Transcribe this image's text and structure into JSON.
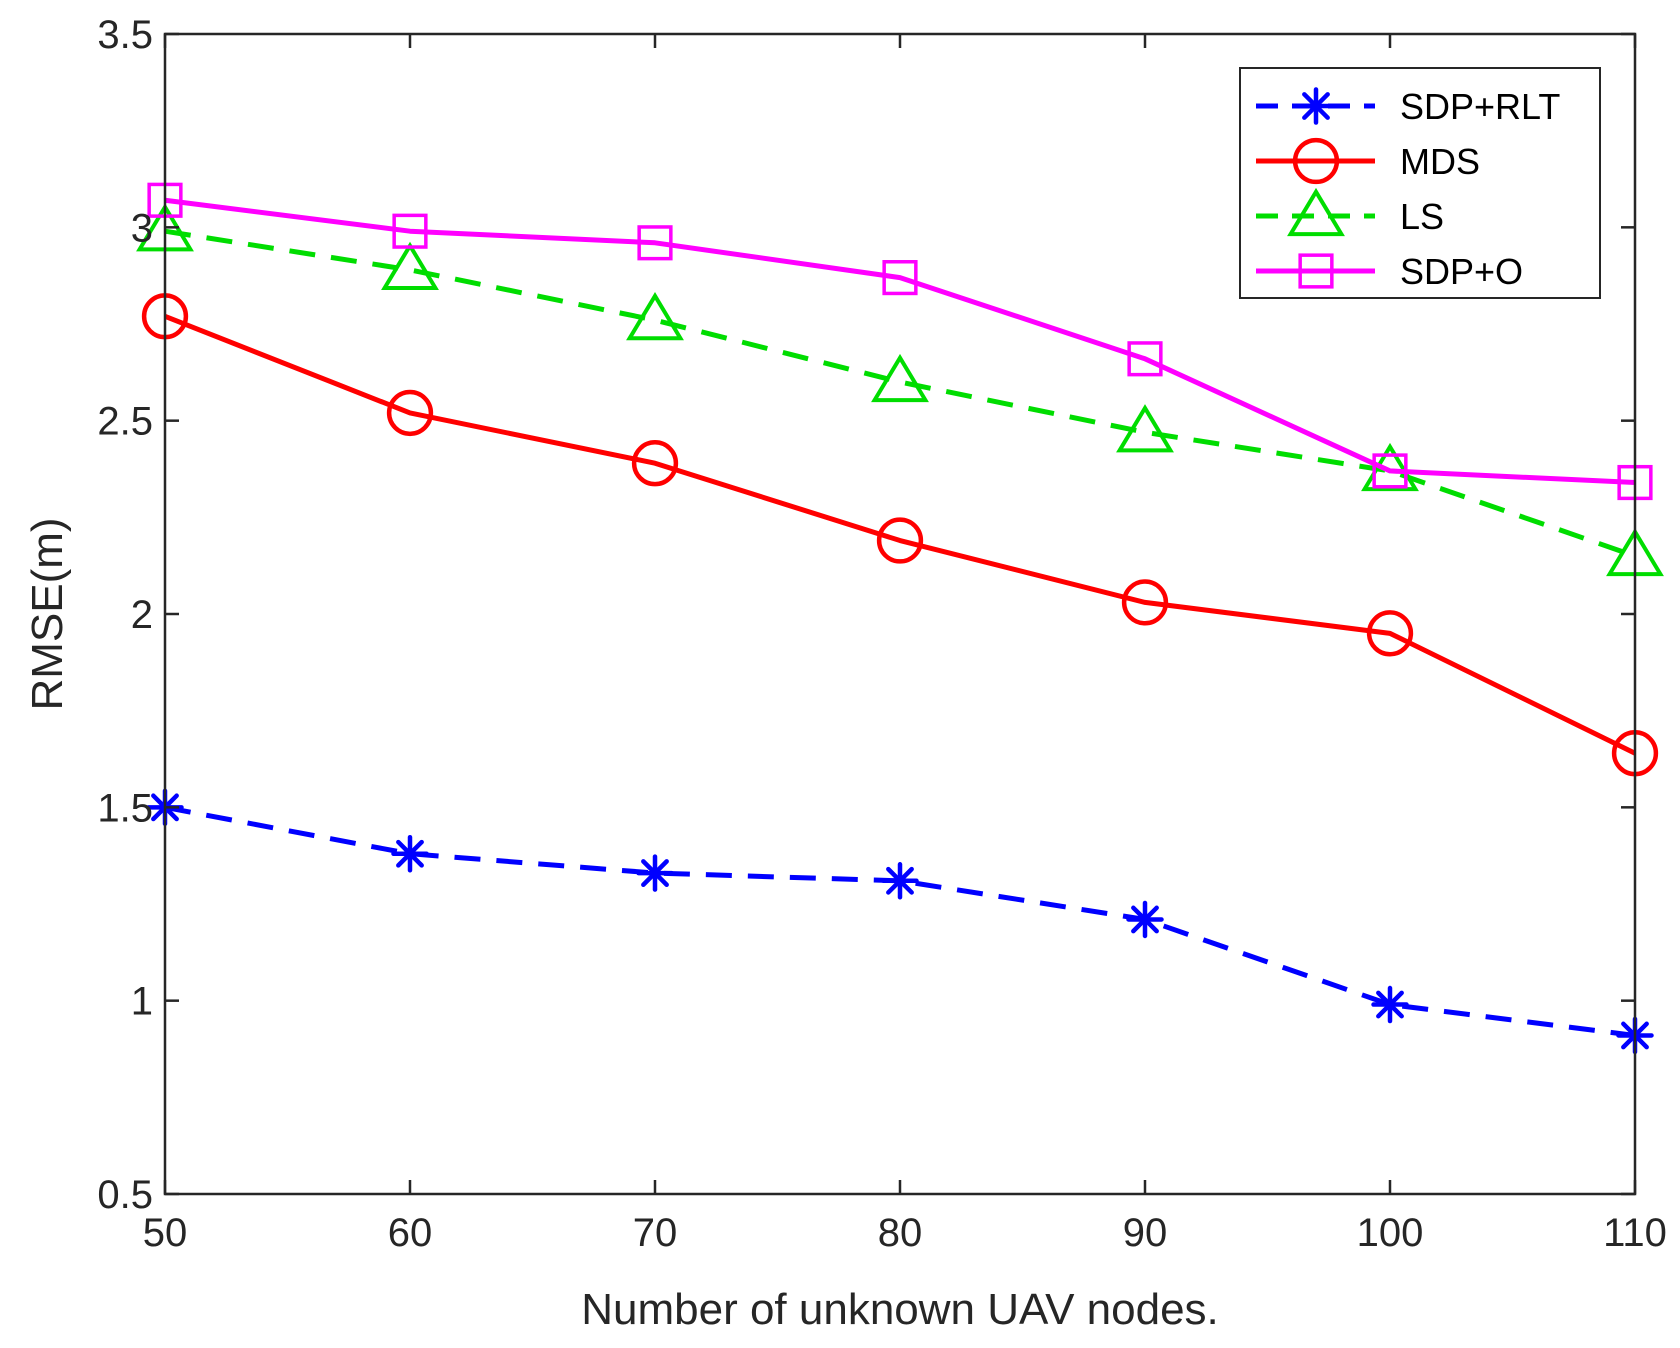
{
  "chart_data": {
    "type": "line",
    "title": "",
    "xlabel": "Number of unknown UAV nodes.",
    "ylabel": "RMSE(m)",
    "x": [
      50,
      60,
      70,
      80,
      90,
      100,
      110
    ],
    "xlim": [
      50,
      110
    ],
    "ylim": [
      0.5,
      3.5
    ],
    "xticks": [
      "50",
      "60",
      "70",
      "80",
      "90",
      "100",
      "110"
    ],
    "yticks": [
      "0.5",
      "1",
      "1.5",
      "2",
      "2.5",
      "3",
      "3.5"
    ],
    "grid": false,
    "legend_position": "top-right",
    "series": [
      {
        "name": "SDP+RLT",
        "color": "#0000FF",
        "dash": "dashed",
        "marker": "asterisk",
        "values": [
          1.5,
          1.38,
          1.33,
          1.31,
          1.21,
          0.99,
          0.91
        ]
      },
      {
        "name": "MDS",
        "color": "#FF0000",
        "dash": "solid",
        "marker": "circle",
        "values": [
          2.77,
          2.52,
          2.39,
          2.19,
          2.03,
          1.95,
          1.64
        ]
      },
      {
        "name": "LS",
        "color": "#00DD00",
        "dash": "dashed",
        "marker": "triangle",
        "values": [
          2.99,
          2.89,
          2.76,
          2.6,
          2.47,
          2.37,
          2.15
        ]
      },
      {
        "name": "SDP+O",
        "color": "#FF00FF",
        "dash": "solid",
        "marker": "square",
        "values": [
          3.07,
          2.99,
          2.96,
          2.87,
          2.66,
          2.37,
          2.34
        ]
      }
    ]
  }
}
